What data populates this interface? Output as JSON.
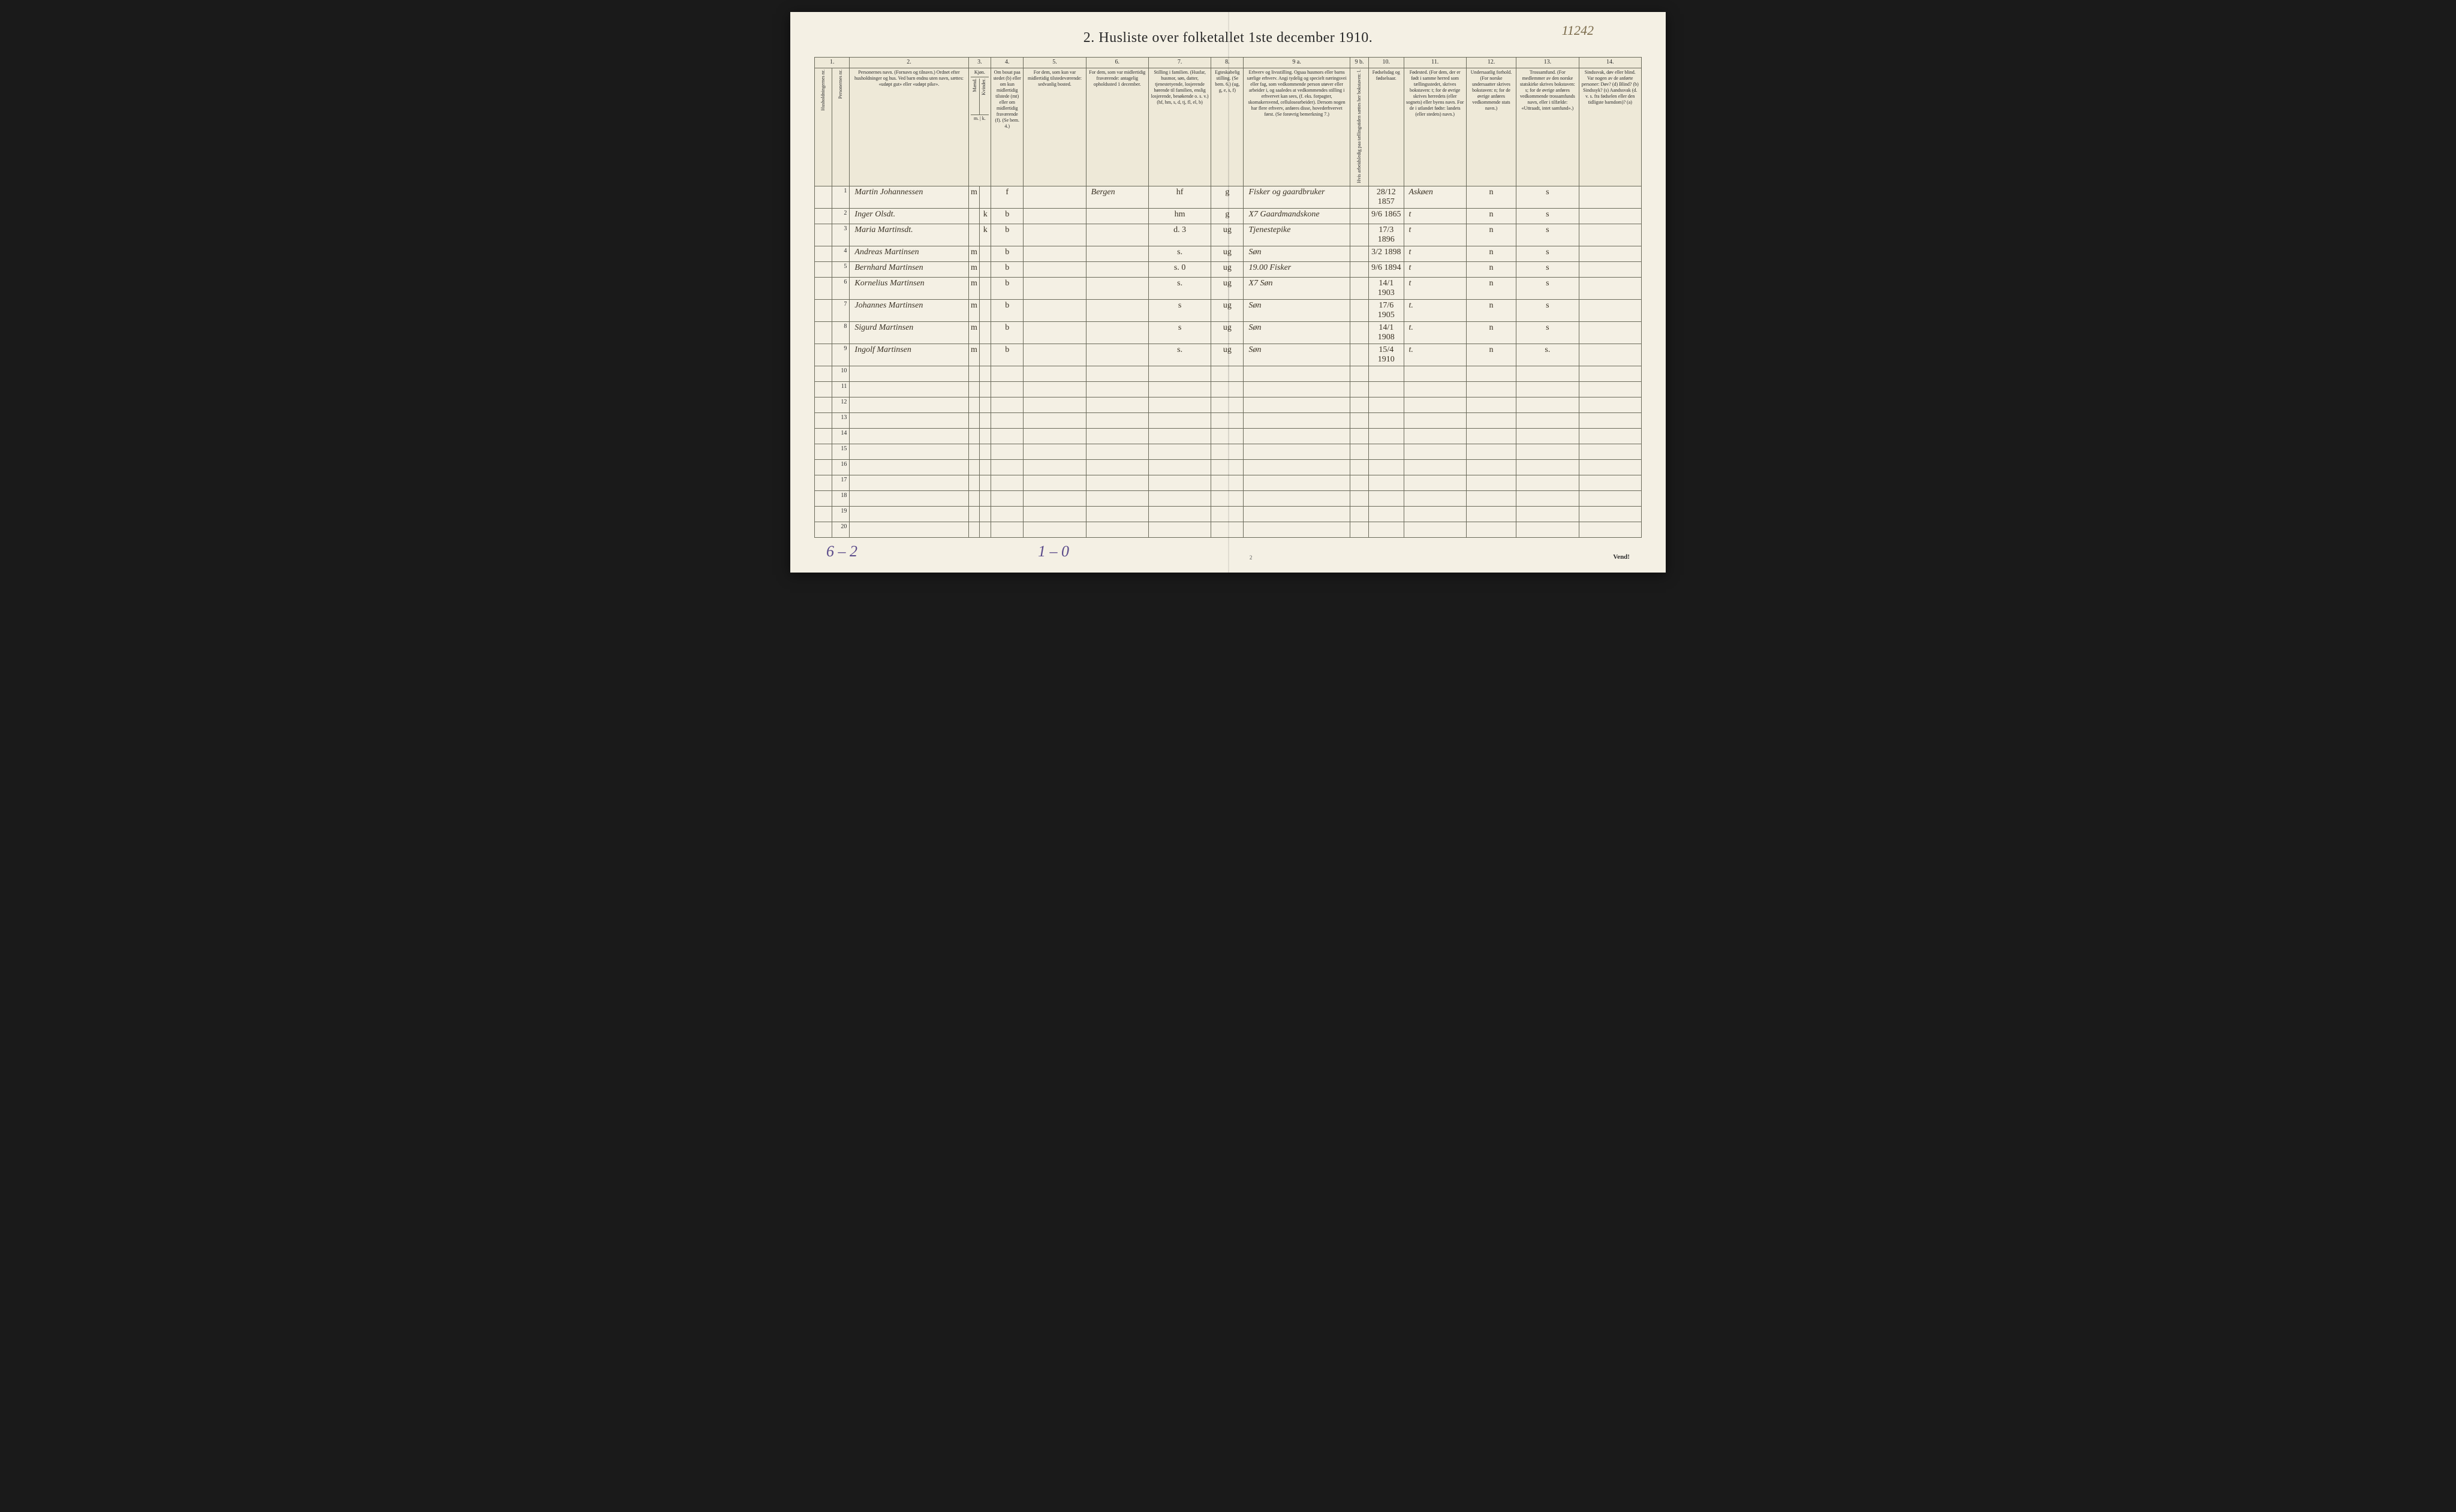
{
  "document_number": "11242",
  "title": "2. Husliste over folketallet 1ste december 1910.",
  "colors": {
    "paper": "#f4f0e4",
    "ink": "#2a2a2a",
    "handwriting": "#3a3225",
    "pencil": "#5a4a8a",
    "border": "#6a6a5a"
  },
  "column_numbers": [
    "1.",
    "2.",
    "3.",
    "4.",
    "5.",
    "6.",
    "7.",
    "8.",
    "9 a.",
    "9 b.",
    "10.",
    "11.",
    "12.",
    "13.",
    "14."
  ],
  "headers": {
    "c1a": "Husholdningernes nr.",
    "c1b": "Personernes nr.",
    "c2": "Personernes navn.\n(Fornavn og tilnavn.)\nOrdnet efter husholdninger og hus.\nVed barn endnu uten navn, sættes: «udøpt gut» eller «udøpt pike».",
    "c3_title": "Kjøn.",
    "c3a": "Mænd.",
    "c3b": "Kvinder.",
    "c3_sub": "m. | k.",
    "c4": "Om bosat paa stedet (b) eller om kun midlertidig tilstede (mt) eller om midlertidig fraværende (f). (Se bem. 4.)",
    "c5": "For dem, som kun var midlertidig tilstedeværende:\nsedvanlig bosted.",
    "c6": "For dem, som var midlertidig fraværende:\nantagelig opholdssted 1 december.",
    "c7": "Stilling i familien.\n(Husfar, husmor, søn, datter, tjenestetyende, losjerende hørende til familien, enslig losjerende, besøkende o. s. v.)\n(hf, hm, s, d, tj, fl, el, b)",
    "c8": "Egteskabelig stilling.\n(Se bem. 6.)\n(ug, g, e, s, f)",
    "c9a": "Erhverv og livsstilling.\nOgsaa husmors eller barns særlige erhverv. Angi tydelig og specielt næringsvei eller fag, som vedkommende person utøver eller arbeider i, og saaledes at vedkommendes stilling i erhvervet kan sees, (f. eks. forpagter, skomakersvend, cellulosearbeider). Dersom nogen har flere erhverv, anføres disse, hovederhvervet først.\n(Se forøvrig bemerkning 7.)",
    "c9b": "Hvis arbeidsledig paa tællingstiden sættes her bokstaven: l.",
    "c10": "Fødselsdag og fødselsaar.",
    "c11": "Fødested.\n(For dem, der er født i samme herred som tællingsstedet, skrives bokstaven: t; for de øvrige skrives herredets (eller sognets) eller byens navn. For de i utlandet fødte: landets (eller stedets) navn.)",
    "c12": "Undersaatlig forhold.\n(For norske undersaatter skrives bokstaven: n; for de øvrige anføres vedkommende stats navn.)",
    "c13": "Trossamfund.\n(For medlemmer av den norske statskirke skrives bokstaven: s; for de øvrige anføres vedkommende trossamfunds navn, eller i tilfælde: «Uttraadt, intet samfund».)",
    "c14": "Sindssvak, døv eller blind.\nVar nogen av de anførte personer:\nDøv? (d)\nBlind? (b)\nSindssyk? (s)\nAandssvak (d. v. s. fra fødselen eller den tidligste barndom)? (a)"
  },
  "rows": [
    {
      "n": "1",
      "name": "Martin Johannessen",
      "sex": "m",
      "res": "f",
      "temp": "",
      "away": "Bergen",
      "fam": "hf",
      "mar": "g",
      "occ": "Fisker og gaardbruker",
      "led": "",
      "dob": "28/12 1857",
      "bplace": "Askøen",
      "nat": "n",
      "rel": "s",
      "dis": ""
    },
    {
      "n": "2",
      "name": "Inger Olsdt.",
      "sex": "k",
      "res": "b",
      "temp": "",
      "away": "",
      "fam": "hm",
      "mar": "g",
      "occ": "X7 Gaardmandskone",
      "led": "",
      "dob": "9/6 1865",
      "bplace": "t",
      "nat": "n",
      "rel": "s",
      "dis": ""
    },
    {
      "n": "3",
      "name": "Maria Martinsdt.",
      "sex": "k",
      "res": "b",
      "temp": "",
      "away": "",
      "fam": "d.    3",
      "mar": "ug",
      "occ": "   Tjenestepike",
      "led": "",
      "dob": "17/3 1896",
      "bplace": "t",
      "nat": "n",
      "rel": "s",
      "dis": ""
    },
    {
      "n": "4",
      "name": "Andreas Martinsen",
      "sex": "m",
      "res": "b",
      "temp": "",
      "away": "",
      "fam": "s.",
      "mar": "ug",
      "occ": "   Søn",
      "led": "",
      "dob": "3/2 1898",
      "bplace": "t",
      "nat": "n",
      "rel": "s",
      "dis": ""
    },
    {
      "n": "5",
      "name": "Bernhard Martinsen",
      "sex": "m",
      "res": "b",
      "temp": "",
      "away": "",
      "fam": "s.    0",
      "mar": "ug",
      "occ": "19.00 Fisker",
      "led": "",
      "dob": "9/6 1894",
      "bplace": "t",
      "nat": "n",
      "rel": "s",
      "dis": ""
    },
    {
      "n": "6",
      "name": "Kornelius Martinsen",
      "sex": "m",
      "res": "b",
      "temp": "",
      "away": "",
      "fam": "s.",
      "mar": "ug",
      "occ": "X7 Søn",
      "led": "",
      "dob": "14/1 1903",
      "bplace": "t",
      "nat": "n",
      "rel": "s",
      "dis": ""
    },
    {
      "n": "7",
      "name": "Johannes Martinsen",
      "sex": "m",
      "res": "b",
      "temp": "",
      "away": "",
      "fam": "s",
      "mar": "ug",
      "occ": "   Søn",
      "led": "",
      "dob": "17/6 1905",
      "bplace": "t.",
      "nat": "n",
      "rel": "s",
      "dis": ""
    },
    {
      "n": "8",
      "name": "Sigurd Martinsen",
      "sex": "m",
      "res": "b",
      "temp": "",
      "away": "",
      "fam": "s",
      "mar": "ug",
      "occ": "Søn",
      "led": "",
      "dob": "14/1 1908",
      "bplace": "t.",
      "nat": "n",
      "rel": "s",
      "dis": ""
    },
    {
      "n": "9",
      "name": "Ingolf Martinsen",
      "sex": "m",
      "res": "b",
      "temp": "",
      "away": "",
      "fam": "s.",
      "mar": "ug",
      "occ": "Søn",
      "led": "",
      "dob": "15/4 1910",
      "bplace": "t.",
      "nat": "n",
      "rel": "s.",
      "dis": ""
    }
  ],
  "blank_rows": [
    10,
    11,
    12,
    13,
    14,
    15,
    16,
    17,
    18,
    19,
    20
  ],
  "footer": {
    "tally_left": "6 – 2",
    "tally_mid": "1 – 0",
    "page_number": "2",
    "vend": "Vend!"
  }
}
